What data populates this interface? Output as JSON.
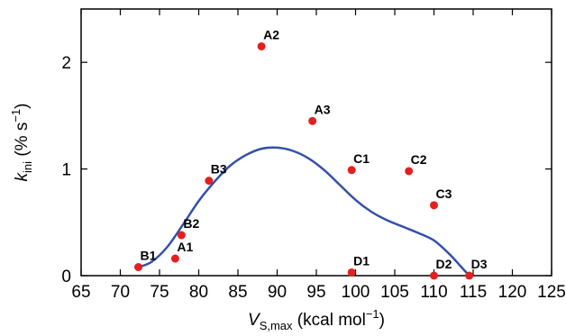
{
  "chart_data": {
    "type": "scatter",
    "xlim": [
      65,
      125
    ],
    "ylim": [
      0,
      2.5
    ],
    "x_ticks": [
      65,
      70,
      75,
      80,
      85,
      90,
      95,
      100,
      105,
      110,
      115,
      120,
      125
    ],
    "y_ticks": [
      0,
      1,
      2
    ],
    "xlabel": {
      "symbol": "V",
      "subscript": "S,max",
      "unit_prefix": " (kcal mol",
      "unit_exp": "−1",
      "unit_suffix": ")"
    },
    "ylabel": {
      "symbol": "k",
      "subscript": "ini",
      "unit_prefix": "  (% s",
      "unit_exp": "−1",
      "unit_suffix": ")"
    },
    "points": [
      {
        "label": "A1",
        "x": 77.0,
        "y": 0.16
      },
      {
        "label": "A2",
        "x": 88.0,
        "y": 2.15
      },
      {
        "label": "A3",
        "x": 94.5,
        "y": 1.45
      },
      {
        "label": "B1",
        "x": 72.3,
        "y": 0.08
      },
      {
        "label": "B2",
        "x": 77.8,
        "y": 0.38
      },
      {
        "label": "B3",
        "x": 81.3,
        "y": 0.89
      },
      {
        "label": "C1",
        "x": 99.5,
        "y": 0.99
      },
      {
        "label": "C2",
        "x": 106.8,
        "y": 0.98
      },
      {
        "label": "C3",
        "x": 110.0,
        "y": 0.66
      },
      {
        "label": "D1",
        "x": 99.5,
        "y": 0.03
      },
      {
        "label": "D2",
        "x": 110.0,
        "y": 0.0
      },
      {
        "label": "D3",
        "x": 114.5,
        "y": 0.0
      }
    ],
    "fit_curve": {
      "x": [
        72.3,
        74,
        76,
        78,
        80,
        82,
        84,
        86,
        88,
        90,
        92,
        94,
        96,
        98,
        100,
        102,
        104,
        106,
        108,
        110,
        112,
        113.5,
        114.5
      ],
      "y": [
        0.08,
        0.13,
        0.27,
        0.48,
        0.7,
        0.88,
        1.03,
        1.13,
        1.19,
        1.2,
        1.17,
        1.1,
        0.99,
        0.85,
        0.71,
        0.6,
        0.52,
        0.46,
        0.4,
        0.33,
        0.2,
        0.08,
        0.0
      ]
    },
    "colors": {
      "points": "#e32020",
      "curve": "#3350a8",
      "axis": "#000000"
    },
    "grid": false,
    "legend": "none"
  }
}
